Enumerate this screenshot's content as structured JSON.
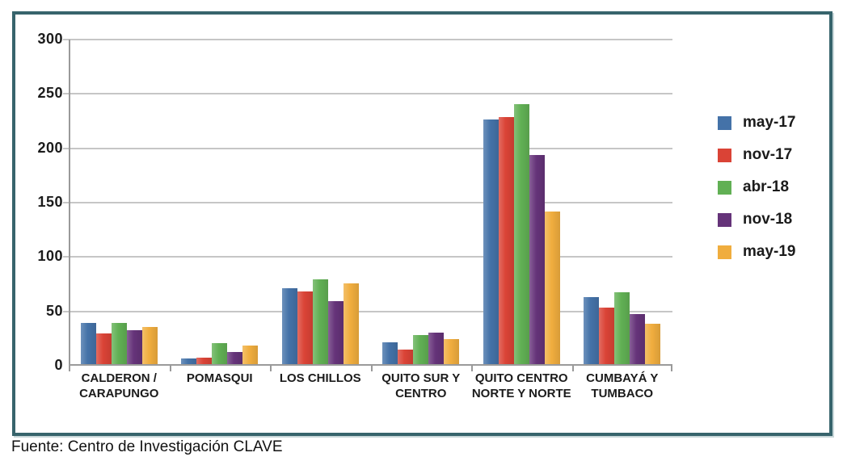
{
  "chart_data": {
    "type": "bar",
    "title": "",
    "xlabel": "",
    "ylabel": "",
    "categories": [
      "CALDERON / CARAPUNGO",
      "POMASQUI",
      "LOS CHILLOS",
      "QUITO SUR Y CENTRO",
      "QUITO CENTRO NORTE Y NORTE",
      "CUMBAYÁ Y TUMBACO"
    ],
    "series": [
      {
        "name": "may-17",
        "color": "#4472a8",
        "values": [
          38,
          5,
          70,
          20,
          225,
          62
        ]
      },
      {
        "name": "nov-17",
        "color": "#da4336",
        "values": [
          28,
          6,
          67,
          13,
          227,
          52
        ]
      },
      {
        "name": "abr-18",
        "color": "#61b054",
        "values": [
          38,
          19,
          78,
          27,
          239,
          66
        ]
      },
      {
        "name": "nov-18",
        "color": "#653379",
        "values": [
          31,
          11,
          58,
          29,
          192,
          46
        ]
      },
      {
        "name": "may-19",
        "color": "#f0ad3e",
        "values": [
          34,
          17,
          74,
          23,
          140,
          37
        ]
      }
    ],
    "ylim": [
      0,
      300
    ],
    "yticks": [
      "0",
      "50",
      "100",
      "150",
      "200",
      "250",
      "300"
    ],
    "grid": true,
    "legend_position": "right"
  },
  "frame_color": "#37646c",
  "source_note": "Fuente: Centro de Investigación CLAVE"
}
